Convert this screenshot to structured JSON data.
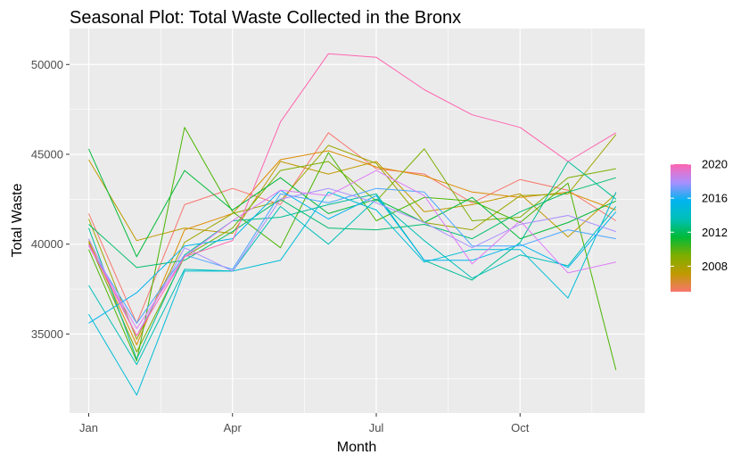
{
  "chart_data": {
    "type": "line",
    "title": "Seasonal Plot: Total Waste Collected in the Bronx",
    "xlabel": "Month",
    "ylabel": "Total Waste",
    "x": [
      1,
      2,
      3,
      4,
      5,
      6,
      7,
      8,
      9,
      10,
      11,
      12
    ],
    "x_ticks": [
      1,
      4,
      7,
      10
    ],
    "x_tick_labels": [
      "Jan",
      "Apr",
      "Jul",
      "Oct"
    ],
    "xlim": [
      0.6,
      12.6
    ],
    "ylim": [
      30600,
      52000
    ],
    "y_ticks": [
      35000,
      40000,
      45000,
      50000
    ],
    "y_tick_labels": [
      "35000",
      "40000",
      "45000",
      "50000"
    ],
    "grid": true,
    "legend": {
      "position": "right",
      "type": "colorbar",
      "range": [
        2005,
        2020
      ],
      "ticks": [
        2008,
        2012,
        2016,
        2020
      ],
      "tick_labels": [
        "2008",
        "2012",
        "2016",
        "2020"
      ]
    },
    "series": [
      {
        "year": 2005,
        "color": "#F8766D",
        "values": [
          41700,
          35600,
          42200,
          43100,
          42200,
          46200,
          44200,
          43900,
          42300,
          43600,
          43000,
          41300
        ]
      },
      {
        "year": 2006,
        "color": "#DE8C00",
        "values": [
          40200,
          34400,
          40800,
          41700,
          44700,
          45200,
          44300,
          43800,
          42900,
          42600,
          42900,
          41900
        ]
      },
      {
        "year": 2007,
        "color": "#C09A00",
        "values": [
          44700,
          40200,
          40900,
          40600,
          44600,
          43900,
          44600,
          41800,
          42200,
          42800,
          40400,
          42800
        ]
      },
      {
        "year": 2008,
        "color": "#9EA700",
        "values": [
          41400,
          34700,
          40100,
          41700,
          42400,
          45500,
          44500,
          41200,
          40800,
          42700,
          42800,
          46100
        ]
      },
      {
        "year": 2009,
        "color": "#7CAE00",
        "values": [
          40100,
          34000,
          39300,
          40900,
          44100,
          44600,
          42400,
          45300,
          41300,
          41500,
          43700,
          44200
        ]
      },
      {
        "year": 2010,
        "color": "#49B500",
        "values": [
          39700,
          33500,
          46500,
          41800,
          39800,
          45100,
          41300,
          42600,
          42400,
          41200,
          43400,
          33000
        ]
      },
      {
        "year": 2011,
        "color": "#00BA38",
        "values": [
          45300,
          39300,
          44100,
          41900,
          43700,
          41700,
          42500,
          41200,
          42600,
          40300,
          41200,
          42400
        ]
      },
      {
        "year": 2012,
        "color": "#00BD6E",
        "values": [
          41100,
          38700,
          39100,
          40700,
          42500,
          40900,
          40800,
          41100,
          40300,
          41800,
          42900,
          43700
        ]
      },
      {
        "year": 2013,
        "color": "#00BF96",
        "values": [
          40900,
          33600,
          39400,
          41300,
          41500,
          42200,
          42800,
          39100,
          38000,
          40100,
          44600,
          42500
        ]
      },
      {
        "year": 2014,
        "color": "#00C0B8",
        "values": [
          37700,
          33300,
          38600,
          38500,
          42100,
          40000,
          42500,
          40200,
          38100,
          39400,
          38800,
          42100
        ]
      },
      {
        "year": 2015,
        "color": "#00BDD6",
        "values": [
          36100,
          31600,
          38500,
          38500,
          39100,
          42900,
          41900,
          39000,
          39700,
          39700,
          37000,
          42900
        ]
      },
      {
        "year": 2016,
        "color": "#00B4EF",
        "values": [
          35600,
          37300,
          39900,
          40300,
          43000,
          41400,
          42700,
          39100,
          39100,
          40000,
          38700,
          41800
        ]
      },
      {
        "year": 2017,
        "color": "#4BA6FF",
        "values": [
          39900,
          35600,
          39400,
          38600,
          42800,
          42300,
          43100,
          42900,
          39900,
          39900,
          40800,
          40300
        ]
      },
      {
        "year": 2018,
        "color": "#AA8FFF",
        "values": [
          40300,
          34900,
          39800,
          38500,
          42500,
          43100,
          42300,
          41200,
          39800,
          41100,
          41600,
          40700
        ]
      },
      {
        "year": 2019,
        "color": "#DE7CF6",
        "values": [
          39900,
          35300,
          39300,
          41300,
          43000,
          42700,
          44100,
          42700,
          38900,
          41300,
          38400,
          39000
        ]
      },
      {
        "year": 2020,
        "color": "#FF64B0",
        "values": [
          40000,
          34900,
          39300,
          40200,
          46800,
          50600,
          50400,
          48600,
          47200,
          46500,
          44600,
          46200
        ]
      }
    ]
  },
  "legend_colors": [
    "#F8766D",
    "#C09A00",
    "#7CAE00",
    "#00BA38",
    "#00C0B8",
    "#00B4EF",
    "#AA8FFF",
    "#FF64B0"
  ]
}
